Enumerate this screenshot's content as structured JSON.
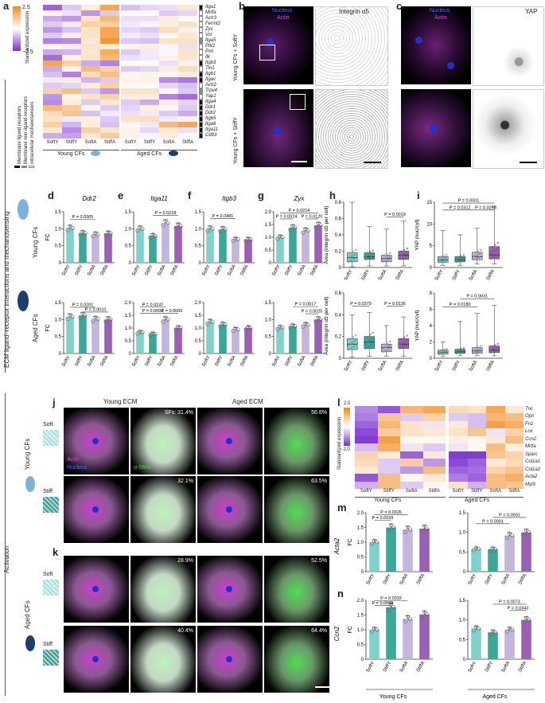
{
  "panels": {
    "a": "a",
    "b": "b",
    "c": "c",
    "d": "d",
    "e": "e",
    "f": "f",
    "g": "g",
    "h": "h",
    "i": "i",
    "j": "j",
    "k": "k",
    "l": "l",
    "m": "m",
    "n": "n"
  },
  "heatmap_a": {
    "legend_title": "Standardized expression",
    "scale_max": "2.5",
    "scale_min": "−2.5",
    "genes": [
      "Itga1",
      "Mrtfa",
      "Actr3",
      "Fermt2",
      "Zyx",
      "Vcl",
      "Itga5",
      "Ptk2",
      "Pxn",
      "Ilk",
      "Itgb3",
      "Tln1",
      "Itgb1",
      "Itgav",
      "Actr2",
      "Trpv4",
      "Yap1",
      "Itga4",
      "Ddr1",
      "Ddr2",
      "Itgb5",
      "Itga6",
      "Itga11",
      "Cd93"
    ],
    "gene_category": [
      0,
      2,
      2,
      2,
      2,
      2,
      1,
      2,
      2,
      2,
      0,
      2,
      0,
      0,
      2,
      1,
      2,
      0,
      0,
      0,
      0,
      0,
      0,
      0
    ],
    "columns": [
      "SoftY",
      "StiffY",
      "SoftA",
      "StiffA"
    ],
    "young_label": "Young CFs",
    "aged_label": "Aged CFs",
    "young_values": [
      [
        -1.5,
        -0.5,
        0.3,
        1.5
      ],
      [
        0.2,
        -0.3,
        -1,
        -0.5
      ],
      [
        -0.8,
        -1,
        0.5,
        1.2
      ],
      [
        -0.5,
        -0.2,
        0.8,
        0.8
      ],
      [
        -1,
        -0.6,
        0.5,
        1.5
      ],
      [
        -0.5,
        0.3,
        0.5,
        1.5
      ],
      [
        -1.2,
        -1.1,
        0.4,
        1.8
      ],
      [
        0.2,
        -0.2,
        0.5,
        0.3
      ],
      [
        -0.8,
        -0.7,
        0.4,
        1.4
      ],
      [
        -1.4,
        0.2,
        0.5,
        1.2
      ],
      [
        1.5,
        0.8,
        -0.8,
        -1.2
      ],
      [
        -0.8,
        0.2,
        1.2,
        0.8
      ],
      [
        -0.6,
        -1.2,
        0.6,
        1.1
      ],
      [
        -0.2,
        0.3,
        -0.7,
        -0.5
      ],
      [
        -0.5,
        -0.4,
        0.3,
        0.8
      ],
      [
        0.8,
        1.1,
        -0.5,
        -1
      ],
      [
        -1,
        0.2,
        0.5,
        0.8
      ],
      [
        -1.1,
        0.3,
        -0.5,
        0.4
      ],
      [
        1.2,
        0.9,
        0.2,
        -0.5
      ],
      [
        0.6,
        1.0,
        -0.6,
        -0.2
      ],
      [
        0.5,
        -0.2,
        0.3,
        -0.5
      ],
      [
        0.8,
        -0.7,
        0.3,
        -0.6
      ],
      [
        0.4,
        -1.1,
        0.8,
        0.5
      ],
      [
        -0.8,
        -0.9,
        0.4,
        0.9
      ]
    ],
    "aged_values": [
      [
        -0.6,
        -0.4,
        -0.3,
        0.4
      ],
      [
        0.1,
        0.1,
        -0.5,
        -0.4
      ],
      [
        -0.3,
        -0.3,
        0.3,
        0.1
      ],
      [
        -0.2,
        -0.1,
        0.3,
        0.5
      ],
      [
        -0.4,
        -0.5,
        0.6,
        0.2
      ],
      [
        -0.2,
        -0.3,
        0.1,
        0.4
      ],
      [
        -0.5,
        -0.6,
        0.5,
        0.5
      ],
      [
        0.2,
        0.3,
        -0.1,
        -0.3
      ],
      [
        -0.5,
        -0.2,
        -0.1,
        0.5
      ],
      [
        -0.3,
        -0.2,
        0.2,
        0.4
      ],
      [
        0.1,
        0.1,
        -0.3,
        0.2
      ],
      [
        -0.5,
        -0.4,
        0.3,
        0.6
      ],
      [
        -0.1,
        0.2,
        -0.1,
        0.3
      ],
      [
        0.2,
        0.2,
        -1.1,
        -1.3
      ],
      [
        0.1,
        0.1,
        -0.4,
        -0.6
      ],
      [
        0.5,
        0.5,
        0.1,
        -0.5
      ],
      [
        0.3,
        0.3,
        -1.2,
        -1.4
      ],
      [
        -0.5,
        -0.8,
        0.3,
        -0.4
      ],
      [
        -0.4,
        0.3,
        -0.1,
        -0.5
      ],
      [
        -0.3,
        -0.2,
        -0.5,
        -0.8
      ],
      [
        0.5,
        0.6,
        -0.2,
        0.2
      ],
      [
        0.1,
        -0.2,
        1.2,
        1.5
      ],
      [
        0.2,
        -0.4,
        0.4,
        -0.3
      ],
      [
        0.2,
        -0.1,
        0.3,
        0.1
      ]
    ],
    "category_legend": [
      "Membrane ligand receptors",
      "Membrane non-ligand receptors",
      "Intracellular mechanosensors"
    ]
  },
  "micrographs": {
    "b_channel_label1": "Nucleus",
    "b_channel_label2": "Actin",
    "b_inset_label": "Integrin α5",
    "c_channel_label1": "Nucleus",
    "c_channel_label2": "Actin",
    "c_inset_label": "YAP",
    "row1_label": "Young CFs + SoftY",
    "row2_label": "Young CFs + StiffY"
  },
  "left_axis": {
    "main_label": "ECM ligand–receptor interactions and mechanosensing",
    "activation_label": "Activation",
    "young_cfs": "Young CFs",
    "aged_cfs": "Aged CFs"
  },
  "bar_panels": {
    "categories": [
      "SoftY",
      "StiffY",
      "SoftA",
      "StiffA"
    ],
    "colors": [
      "#7fd1c9",
      "#3aa899",
      "#c4b5dc",
      "#9b60b3"
    ],
    "ylabel": "FC",
    "young": [
      {
        "gene": "Ddr2",
        "values": [
          1.02,
          0.87,
          0.83,
          0.86
        ],
        "ymax": 1.5,
        "ticks": [
          "0",
          "0.5",
          "1.0",
          "1.5"
        ],
        "pvals": [
          {
            "a": 0,
            "b": 2,
            "text": "P = 0.0365",
            "level": 1.28
          }
        ]
      },
      {
        "gene": "Itga11",
        "values": [
          1.0,
          0.79,
          1.17,
          1.08
        ],
        "ymax": 1.5,
        "ticks": [
          "0",
          "0.5",
          "1.0",
          "1.5"
        ],
        "pvals": [
          {
            "a": 1,
            "b": 3,
            "text": "P = 0.0218",
            "level": 1.4
          }
        ]
      },
      {
        "gene": "Itgb3",
        "values": [
          1.0,
          0.98,
          0.69,
          0.68
        ],
        "ymax": 1.5,
        "ticks": [
          "0",
          "0.5",
          "1.0",
          "1.5"
        ],
        "pvals": [
          {
            "a": 0,
            "b": 2,
            "text": "P = 0.0481",
            "level": 1.3
          }
        ]
      },
      {
        "gene": "Zyx",
        "values": [
          1.0,
          1.37,
          1.26,
          1.47
        ],
        "ymax": 2.0,
        "ticks": [
          "0",
          "0.5",
          "1.0",
          "1.5",
          "2.0"
        ],
        "pvals": [
          {
            "a": 0,
            "b": 3,
            "text": "P = 0.0214",
            "level": 1.95
          },
          {
            "a": 0,
            "b": 1,
            "text": "P = 0.0024",
            "level": 1.72
          },
          {
            "a": 2,
            "b": 3,
            "text": "P = 0.0120",
            "level": 1.72
          }
        ]
      }
    ],
    "aged": [
      {
        "gene": "Ddr2",
        "values": [
          1.08,
          1.12,
          1.01,
          1.0
        ],
        "ymax": 1.5,
        "ticks": [
          "0",
          "0.5",
          "1.0",
          "1.5"
        ],
        "pvals": [
          {
            "a": 0,
            "b": 2,
            "text": "P = 0.0201",
            "level": 1.36
          },
          {
            "a": 1,
            "b": 3,
            "text": "P = 0.0010",
            "level": 1.22
          }
        ]
      },
      {
        "gene": "Itga11",
        "values": [
          0.83,
          0.77,
          1.33,
          1.0
        ],
        "ymax": 2.0,
        "ticks": [
          "0",
          "0.5",
          "1.0",
          "1.5",
          "2.0"
        ],
        "pvals": [
          {
            "a": 0,
            "b": 2,
            "text": "P = 0.0247",
            "level": 1.82
          },
          {
            "a": 0,
            "b": 2,
            "text": "P = 0.0006",
            "level": 1.58
          },
          {
            "a": 2,
            "b": 3,
            "text": "P = 0.0065",
            "level": 1.58
          }
        ]
      },
      {
        "gene": "Itgb3",
        "values": [
          1.24,
          1.13,
          0.94,
          1.0
        ],
        "ymax": 2.0,
        "ticks": [
          "0",
          "0.5",
          "1.0",
          "1.5",
          "2.0"
        ],
        "pvals": []
      },
      {
        "gene": "Zyx",
        "values": [
          0.76,
          0.8,
          0.84,
          1.0
        ],
        "ymax": 1.5,
        "ticks": [
          "0",
          "0.5",
          "1.0",
          "1.5"
        ],
        "pvals": [
          {
            "a": 1,
            "b": 3,
            "text": "P = 0.0017",
            "level": 1.38
          },
          {
            "a": 2,
            "b": 3,
            "text": "P = 0.0025",
            "level": 1.17
          }
        ]
      }
    ]
  },
  "box_panels": {
    "h_ylabel": "Area (integrin α5 per cell)",
    "i_ylabel": "YAP (nuc/cyt)",
    "h_young": {
      "ymax": 0.8,
      "ticks": [
        "0",
        "0.2",
        "0.4",
        "0.6",
        "0.8"
      ],
      "boxes": [
        [
          0.01,
          0.07,
          0.12,
          0.18,
          0.8
        ],
        [
          0.02,
          0.1,
          0.13,
          0.18,
          0.5
        ],
        [
          0.02,
          0.07,
          0.11,
          0.15,
          0.47
        ],
        [
          0.02,
          0.1,
          0.15,
          0.2,
          0.57
        ]
      ],
      "pvals": [
        {
          "a": 2,
          "b": 3,
          "text": "P = 0.0019",
          "level": 0.62
        }
      ]
    },
    "h_aged": {
      "ymax": 0.6,
      "ticks": [
        "0",
        "0.2",
        "0.4",
        "0.6"
      ],
      "boxes": [
        [
          0.01,
          0.08,
          0.13,
          0.18,
          0.4
        ],
        [
          0.02,
          0.09,
          0.15,
          0.2,
          0.42
        ],
        [
          0.02,
          0.06,
          0.1,
          0.13,
          0.3
        ],
        [
          0.02,
          0.09,
          0.13,
          0.18,
          0.38
        ]
      ],
      "pvals": [
        {
          "a": 0,
          "b": 1,
          "text": "P = 0.0379",
          "level": 0.48
        },
        {
          "a": 2,
          "b": 3,
          "text": "P = 0.0136",
          "level": 0.48
        }
      ]
    },
    "i_young": {
      "ymax": 15,
      "ticks": [
        "0",
        "5",
        "10",
        "15"
      ],
      "boxes": [
        [
          0.5,
          1.2,
          1.7,
          2.5,
          8.5
        ],
        [
          0.5,
          1.3,
          1.8,
          2.5,
          7.5
        ],
        [
          0.8,
          1.8,
          2.5,
          3.5,
          9
        ],
        [
          0.8,
          2.0,
          2.9,
          4.8,
          14
        ]
      ],
      "pvals": [
        {
          "a": 0,
          "b": 3,
          "text": "P = 0.0001",
          "level": 14.8
        },
        {
          "a": 0,
          "b": 2,
          "text": "P = 0.0312",
          "level": 13.2
        },
        {
          "a": 2,
          "b": 3,
          "text": "P = 0.0256",
          "level": 13.2
        }
      ]
    },
    "i_aged": {
      "ymax": 8,
      "ticks": [
        "0",
        "2",
        "4",
        "6",
        "8"
      ],
      "boxes": [
        [
          0.2,
          0.5,
          0.75,
          1.0,
          2.0
        ],
        [
          0.3,
          0.6,
          0.8,
          1.1,
          4.5
        ],
        [
          0.3,
          0.6,
          0.9,
          1.3,
          5.5
        ],
        [
          0.3,
          0.7,
          1.0,
          1.5,
          6.5
        ]
      ],
      "pvals": [
        {
          "a": 1,
          "b": 3,
          "text": "P = 0.0031",
          "level": 7.3
        },
        {
          "a": 0,
          "b": 2,
          "text": "P = 0.0180",
          "level": 6.3
        }
      ]
    }
  },
  "activation": {
    "young_ecm": "Young ECM",
    "aged_ecm": "Aged ECM",
    "soft": "Soft",
    "stiff": "Stiff",
    "actin": "Actin",
    "nucleus": "Nucleus",
    "asma": "α-SMA",
    "j_sf": [
      "SFs: 31.4%",
      "56.8%",
      "32.1%",
      "63.5%"
    ],
    "k_sf": [
      "28.9%",
      "52.5%",
      "40.4%",
      "64.4%"
    ]
  },
  "heatmap_l": {
    "legend_title": "Standardized expression",
    "scale_max": "2.0",
    "scale_min": "−2.0",
    "genes": [
      "Tnc",
      "Opn",
      "Fn1",
      "Lox",
      "Ccn2",
      "Mrtfa",
      "Sparc",
      "Col1a1",
      "Col1a2",
      "Acta2",
      "Myl9"
    ],
    "young_values": [
      [
        -0.9,
        -1.3,
        1.0,
        1.2
      ],
      [
        -1.0,
        0.8,
        -0.4,
        0.6
      ],
      [
        -1.2,
        1.0,
        0.4,
        -0.2
      ],
      [
        -1.4,
        0.7,
        0.4,
        0.3
      ],
      [
        -1.5,
        1.3,
        0.1,
        0.1
      ],
      [
        -0.5,
        1.1,
        -0.2,
        -0.4
      ],
      [
        0.6,
        0.3,
        -1.2,
        0.3
      ],
      [
        0.5,
        -0.4,
        0.7,
        -0.8
      ],
      [
        0.3,
        -0.4,
        -0.8,
        0.9
      ],
      [
        -1.3,
        0.9,
        0.1,
        0.3
      ],
      [
        -0.6,
        0.9,
        -0.4,
        0.1
      ]
    ],
    "aged_values": [
      [
        0.5,
        0.4,
        1.2,
        0.3
      ],
      [
        -0.4,
        -0.5,
        1.0,
        0.9
      ],
      [
        0.3,
        -0.5,
        1.3,
        1.1
      ],
      [
        0.4,
        0.8,
        -0.2,
        0.6
      ],
      [
        0.2,
        0.1,
        0.3,
        0.9
      ],
      [
        -0.2,
        0.1,
        0.9,
        0.2
      ],
      [
        -1.5,
        -1.5,
        0.8,
        0.6
      ],
      [
        -1.4,
        -1.2,
        0.3,
        0.5
      ],
      [
        -1.2,
        -1.1,
        0.6,
        0.8
      ],
      [
        -1.0,
        -1.2,
        0.9,
        1.1
      ],
      [
        0.4,
        -0.6,
        0.9,
        0.8
      ]
    ],
    "columns": [
      "SoftY",
      "StiffY",
      "SoftA",
      "StiffA"
    ],
    "young_label": "Young CFs",
    "aged_label": "Aged CFs"
  },
  "mn_panels": {
    "m_gene": "Acta2",
    "n_gene": "Ccn2",
    "ylabel": "FC",
    "m_young": {
      "values": [
        1.0,
        1.5,
        1.43,
        1.46
      ],
      "ymax": 2.0,
      "ticks": [
        "0",
        "0.5",
        "1.0",
        "1.5",
        "2.0"
      ],
      "pvals": [
        {
          "a": 0,
          "b": 2,
          "text": "P = 0.0326",
          "level": 1.93
        },
        {
          "a": 0,
          "b": 1,
          "text": "P = 0.0159",
          "level": 1.75
        }
      ]
    },
    "m_aged": {
      "values": [
        0.58,
        0.57,
        0.92,
        1.0
      ],
      "ymax": 1.5,
      "ticks": [
        "0",
        "0.5",
        "1.0",
        "1.5"
      ],
      "pvals": [
        {
          "a": 1,
          "b": 3,
          "text": "P = 0.0001",
          "level": 1.38
        },
        {
          "a": 0,
          "b": 2,
          "text": "P = 0.0001",
          "level": 1.22
        }
      ]
    },
    "n_young": {
      "values": [
        1.0,
        1.77,
        1.37,
        1.52
      ],
      "ymax": 2.0,
      "ticks": [
        "0",
        "0.5",
        "1.0",
        "1.5",
        "2.0"
      ],
      "pvals": [
        {
          "a": 0,
          "b": 2,
          "text": "P = 0.0333",
          "level": 1.98
        },
        {
          "a": 0,
          "b": 1,
          "text": "P = 0.0009",
          "level": 1.82
        }
      ]
    },
    "n_aged": {
      "values": [
        0.78,
        0.68,
        0.75,
        1.0
      ],
      "ymax": 1.5,
      "ticks": [
        "0",
        "0.5",
        "1.0",
        "1.5"
      ],
      "pvals": [
        {
          "a": 1,
          "b": 3,
          "text": "P = 0.0073",
          "level": 1.4
        },
        {
          "a": 2,
          "b": 3,
          "text": "P = 0.0343",
          "level": 1.24
        }
      ]
    },
    "young_label": "Young CFs",
    "aged_label": "Aged CFs"
  }
}
